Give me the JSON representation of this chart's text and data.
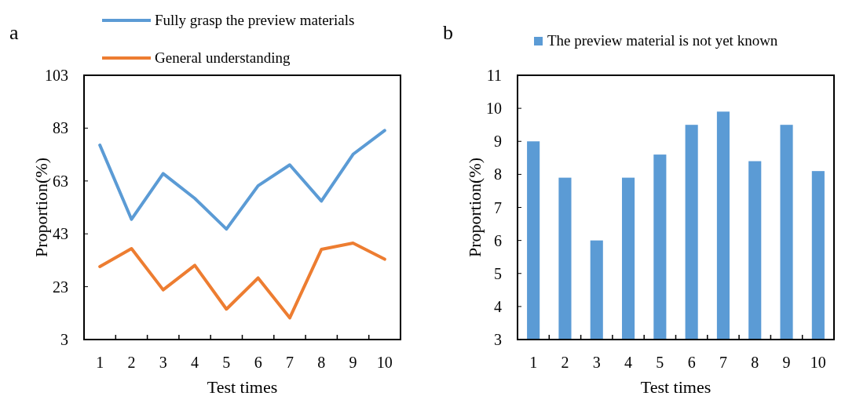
{
  "chart_data": [
    {
      "type": "line",
      "title": "a",
      "xlabel": "Test times",
      "ylabel": "Proportion(%)",
      "categories": [
        "1",
        "2",
        "3",
        "4",
        "5",
        "6",
        "7",
        "8",
        "9",
        "10"
      ],
      "ylim": [
        3,
        103
      ],
      "yticks": [
        3,
        23,
        43,
        63,
        83,
        103
      ],
      "legend": "top",
      "series": [
        {
          "name": "Fully grasp the preview materials",
          "color": "#5b9bd5",
          "values": [
            76.6,
            48.5,
            65.8,
            56.4,
            44.8,
            61.2,
            69.1,
            55.4,
            73.1,
            82.1
          ]
        },
        {
          "name": "General understanding",
          "color": "#ed7d31",
          "values": [
            30.6,
            37.4,
            21.8,
            31.1,
            14.5,
            26.3,
            11.2,
            37.1,
            39.5,
            33.4
          ]
        }
      ]
    },
    {
      "type": "bar",
      "title": "b",
      "xlabel": "Test times",
      "ylabel": "Proportion(%)",
      "categories": [
        "1",
        "2",
        "3",
        "4",
        "5",
        "6",
        "7",
        "8",
        "9",
        "10"
      ],
      "ylim": [
        3,
        11
      ],
      "yticks": [
        3,
        4,
        5,
        6,
        7,
        8,
        9,
        10,
        11
      ],
      "legend": "top",
      "series": [
        {
          "name": "The preview material is not yet known",
          "color": "#5b9bd5",
          "values": [
            9,
            7.9,
            6,
            7.9,
            8.6,
            9.5,
            9.9,
            8.4,
            9.5,
            8.1
          ]
        }
      ]
    }
  ]
}
